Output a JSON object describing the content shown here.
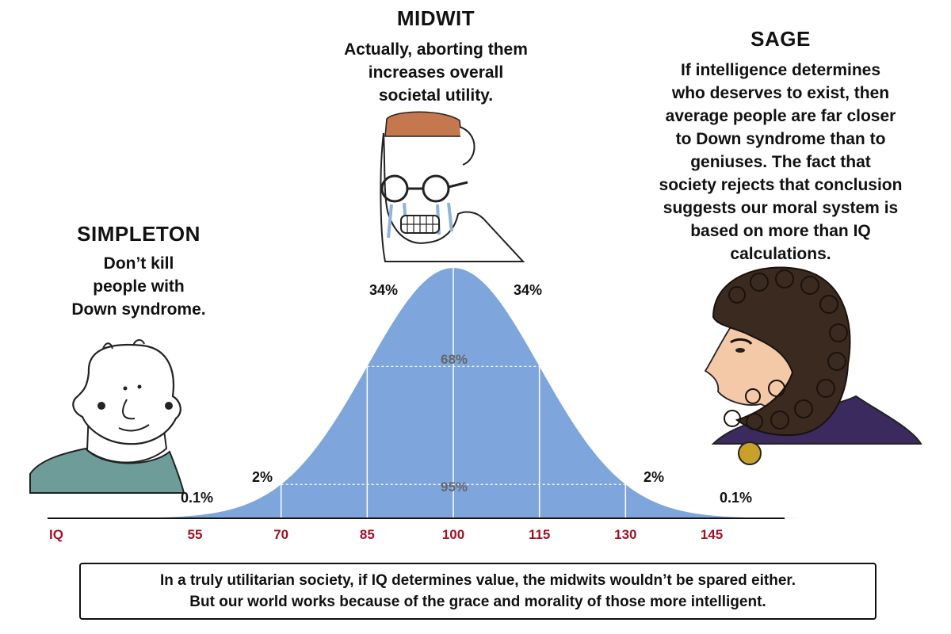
{
  "characters": {
    "simpleton": {
      "title": "SIMPLETON",
      "quote_lines": [
        "Don’t kill",
        "people with",
        "Down syndrome."
      ]
    },
    "midwit": {
      "title": "MIDWIT",
      "quote_lines": [
        "Actually, aborting them",
        "increases overall",
        "societal utility."
      ]
    },
    "sage": {
      "title": "SAGE",
      "quote_lines": [
        "If intelligence determines",
        "who deserves to exist, then",
        "average people are far closer",
        "to Down syndrome than to",
        "geniuses. The fact that",
        "society rejects that conclusion",
        "suggests our moral system is",
        "based on more than IQ",
        "calculations."
      ]
    }
  },
  "chart_data": {
    "type": "area",
    "distribution": "normal",
    "mean": 100,
    "sd": 15,
    "xlabel": "IQ",
    "ticks": [
      55,
      70,
      85,
      100,
      115,
      130,
      145
    ],
    "tick_labels": [
      "55",
      "70",
      "85",
      "100",
      "115",
      "130",
      "145"
    ],
    "x_range": [
      45,
      160
    ],
    "region_labels": {
      "left_tail": "0.1%",
      "left_2": "2%",
      "left_34": "34%",
      "right_34": "34%",
      "right_2": "2%",
      "right_tail": "0.1%",
      "inner_68": "68%",
      "inner_95": "95%"
    },
    "fill_color": "#7ea6dc",
    "tick_color": "#a01428"
  },
  "footer": {
    "lines": [
      "In a truly utilitarian society, if IQ determines value, the midwits wouldn’t be spared either.",
      "But our world works because of the grace and morality of those more intelligent."
    ]
  }
}
